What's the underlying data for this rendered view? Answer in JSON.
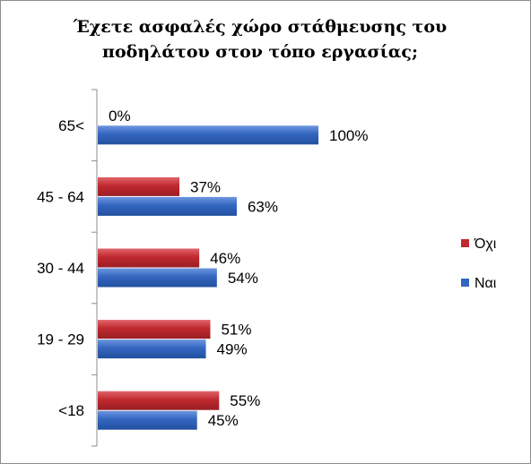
{
  "chart_data": {
    "type": "bar",
    "orientation": "horizontal",
    "title": "Έχετε ασφαλές χώρο στάθμευσης του ποδηλάτου στον τόπο εργασίας;",
    "categories": [
      "65<",
      "45 - 64",
      "30 - 44",
      "19 - 29",
      "<18"
    ],
    "series": [
      {
        "name": "Όχι",
        "color": "#c0292f",
        "values": [
          0,
          37,
          46,
          51,
          55
        ],
        "labels": [
          "0%",
          "37%",
          "46%",
          "51%",
          "55%"
        ]
      },
      {
        "name": "Ναι",
        "color": "#3366c0",
        "values": [
          100,
          63,
          54,
          49,
          45
        ],
        "labels": [
          "100%",
          "63%",
          "54%",
          "49%",
          "45%"
        ]
      }
    ],
    "xlim": [
      0,
      100
    ],
    "grid": false,
    "legend_position": "right"
  }
}
